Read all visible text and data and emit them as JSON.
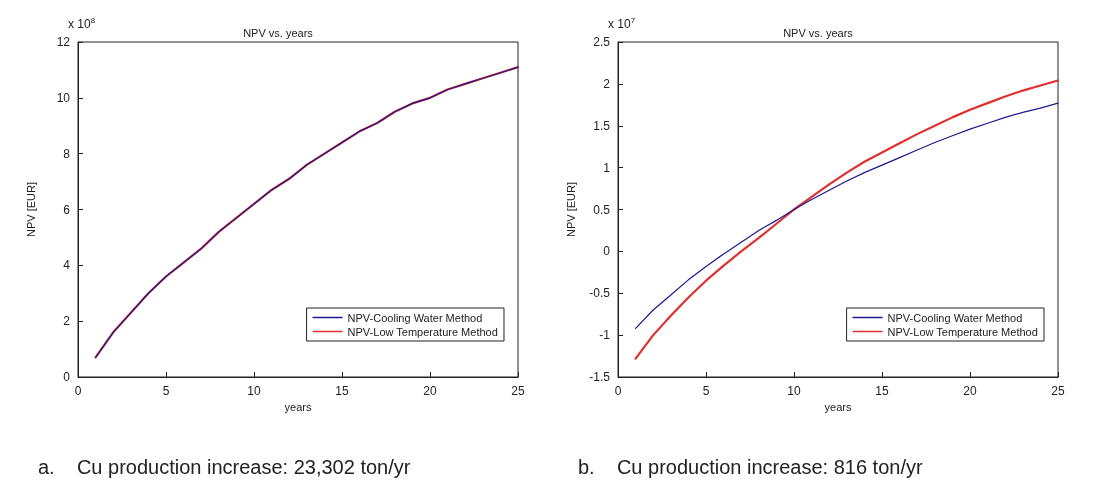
{
  "chart_data": [
    {
      "type": "line",
      "title": "NPV vs. years",
      "xlabel": "years",
      "ylabel": "NPV [EUR]",
      "annotations": [
        "x 10$^{8}$",
        "a.    Cu production increase: 23,302 ton/yr"
      ],
      "x": [
        1,
        2,
        3,
        4,
        5,
        6,
        7,
        8,
        9,
        10,
        11,
        12,
        13,
        14,
        15,
        16,
        17,
        18,
        19,
        20,
        21,
        22,
        23,
        24,
        25
      ],
      "series": [
        {
          "name": "NPV-Cooling Water Method",
          "color": "#1a1a8c",
          "values": [
            0.7,
            1.6,
            2.3,
            3.0,
            3.6,
            4.1,
            4.6,
            5.2,
            5.7,
            6.2,
            6.7,
            7.1,
            7.6,
            8.0,
            8.4,
            8.8,
            9.1,
            9.5,
            9.8,
            10.0,
            10.3,
            10.5,
            10.7,
            10.9,
            11.1
          ]
        },
        {
          "name": "NPV-Low Temperature Method",
          "color": "#e03030",
          "values": [
            0.7,
            1.6,
            2.3,
            3.0,
            3.6,
            4.1,
            4.6,
            5.2,
            5.7,
            6.2,
            6.7,
            7.1,
            7.6,
            8.0,
            8.4,
            8.8,
            9.1,
            9.5,
            9.8,
            10.0,
            10.3,
            10.5,
            10.7,
            10.9,
            11.1
          ]
        }
      ],
      "xlim": [
        0,
        25
      ],
      "xticks": [
        0,
        5,
        10,
        15,
        20,
        25
      ],
      "ylim": [
        0,
        12
      ],
      "yticks": [
        0,
        2,
        4,
        6,
        8,
        10,
        12
      ],
      "grid": false,
      "legend": "bottom right"
    },
    {
      "type": "line",
      "title": "NPV vs. years",
      "xlabel": "years",
      "ylabel": "NPV [EUR]",
      "annotations": [
        "x 10$^{7}$",
        "b.    Cu production increase: 816 ton/yr"
      ],
      "x": [
        1,
        2,
        3,
        4,
        5,
        6,
        7,
        8,
        9,
        10,
        11,
        12,
        13,
        14,
        15,
        16,
        17,
        18,
        19,
        20,
        21,
        22,
        23,
        24,
        25
      ],
      "series": [
        {
          "name": "NPV-Cooling Water Method",
          "color": "#1a1a8c",
          "values": [
            -0.92,
            -0.7,
            -0.52,
            -0.34,
            -0.18,
            -0.03,
            0.11,
            0.25,
            0.37,
            0.5,
            0.62,
            0.73,
            0.84,
            0.94,
            1.03,
            1.12,
            1.21,
            1.3,
            1.38,
            1.46,
            1.53,
            1.6,
            1.66,
            1.71,
            1.77
          ]
        },
        {
          "name": "NPV-Low Temperature Method",
          "color": "#e03030",
          "values": [
            -1.28,
            -1.0,
            -0.77,
            -0.55,
            -0.35,
            -0.17,
            0.0,
            0.16,
            0.33,
            0.5,
            0.65,
            0.8,
            0.94,
            1.07,
            1.18,
            1.29,
            1.4,
            1.5,
            1.6,
            1.69,
            1.77,
            1.85,
            1.92,
            1.98,
            2.04
          ]
        }
      ],
      "xlim": [
        0,
        25
      ],
      "xticks": [
        0,
        5,
        10,
        15,
        20,
        25
      ],
      "ylim": [
        -1.5,
        2.5
      ],
      "yticks": [
        -1.5,
        -1,
        -0.5,
        0,
        0.5,
        1,
        1.5,
        2,
        2.5
      ],
      "grid": false,
      "legend": "bottom right"
    }
  ]
}
